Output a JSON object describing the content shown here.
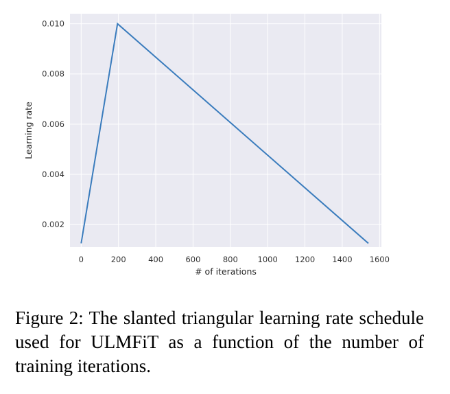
{
  "chart_data": {
    "type": "line",
    "title": "",
    "xlabel": "# of iterations",
    "ylabel": "Learning rate",
    "xlim": [
      -60,
      1610
    ],
    "ylim": [
      0.0011,
      0.0104
    ],
    "xticks": [
      0,
      200,
      400,
      600,
      800,
      1000,
      1200,
      1400,
      1600
    ],
    "yticks": [
      0.002,
      0.004,
      0.006,
      0.008,
      0.01
    ],
    "ytick_labels": [
      "0.002",
      "0.004",
      "0.006",
      "0.008",
      "0.010"
    ],
    "grid": true,
    "background_color": "#eaeaf2",
    "grid_color": "#ffffff",
    "line_color": "#3a7cbd",
    "series": [
      {
        "x": [
          0,
          195,
          1540
        ],
        "y": [
          0.00125,
          0.01,
          0.00125
        ]
      }
    ]
  },
  "caption": "Figure 2:  The slanted triangular learning rate schedule used for ULMFiT as a function of the number of training iterations."
}
